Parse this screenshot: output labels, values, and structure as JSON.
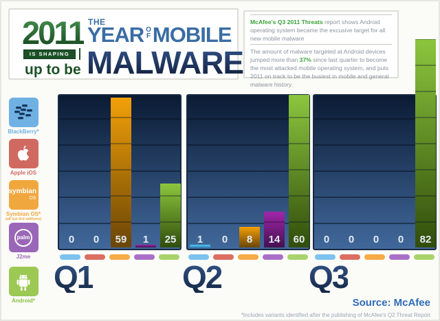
{
  "header": {
    "year": "2011",
    "is_shaping": "IS SHAPING",
    "up_to_be": "up to be",
    "the": "THE",
    "year_word": "YEAR",
    "of_top": "O",
    "of_bottom": "F",
    "mobile": "MOBILE",
    "malware": "MALWARE"
  },
  "callout": {
    "title": "McAfee's Q3 2011 Threats",
    "para1_rest": " report shows Android operating system became the excusive target for all new mobile malware",
    "para2_pre": "The amount of malware targeted at Android devices jumped more than ",
    "para2_pct": "37%",
    "para2_post": " since last quarter to become the most attacked mobile operating system, and puts 2011 on track to be the busiest in mobile and general malware history."
  },
  "legend": {
    "items": [
      {
        "label": "BlackBerry*",
        "icon": "blackberry-logo",
        "tile_color": "#6fb1e2",
        "label_color": "#6fb1e2"
      },
      {
        "label": "Apple iOS",
        "icon": "apple-logo",
        "tile_color": "#d06a60",
        "label_color": "#d06a60"
      },
      {
        "label": "Symbian OS*",
        "sublabel": "(all 1st-3rd editions)",
        "icon": "symbian-wordmark",
        "tile_text": "symbian",
        "tile_text2": "OS",
        "tile_color": "#f0a73e",
        "label_color": "#f0a73e"
      },
      {
        "label": "J2me",
        "icon": "palm-logo",
        "tile_text": "palm",
        "tile_color": "#9a67b8",
        "label_color": "#9a67b8"
      },
      {
        "label": "Android*",
        "icon": "android-robot",
        "tile_color": "#9cc854",
        "label_color": "#8bbf3f"
      }
    ]
  },
  "chart_data": {
    "type": "bar",
    "title": "2011 The Year of Mobile Malware — new malware samples by platform per quarter",
    "categories": [
      "Q1",
      "Q2",
      "Q3"
    ],
    "series": [
      {
        "name": "BlackBerry*",
        "swatch": "#7cc2ee",
        "grad": [
          "#56c5f0",
          "#2e8fc4"
        ],
        "values": [
          0,
          1,
          0
        ]
      },
      {
        "name": "Apple iOS",
        "swatch": "#dc6e61",
        "grad": [
          "#d96b60",
          "#8f3a32"
        ],
        "values": [
          0,
          0,
          0
        ]
      },
      {
        "name": "Symbian OS*",
        "swatch": "#f6ab47",
        "grad": [
          "#f2a008",
          "#6a4506"
        ],
        "values": [
          59,
          8,
          0
        ]
      },
      {
        "name": "J2me",
        "swatch": "#aa70c8",
        "grad": [
          "#a126aa",
          "#45104e"
        ],
        "values": [
          1,
          14,
          0
        ]
      },
      {
        "name": "Android*",
        "swatch": "#a9d36b",
        "grad": [
          "#8cc63e",
          "#314d0b"
        ],
        "values": [
          25,
          60,
          82
        ]
      }
    ],
    "value_labels_shown": true,
    "gridlines": true,
    "ylim": [
      0,
      82
    ],
    "legend_position": "left-sidebar"
  },
  "footer": {
    "source": "Source: McAfee",
    "footnote": "*Includes variants identified after the publishing of McAfee's Q2 Threat Report"
  }
}
